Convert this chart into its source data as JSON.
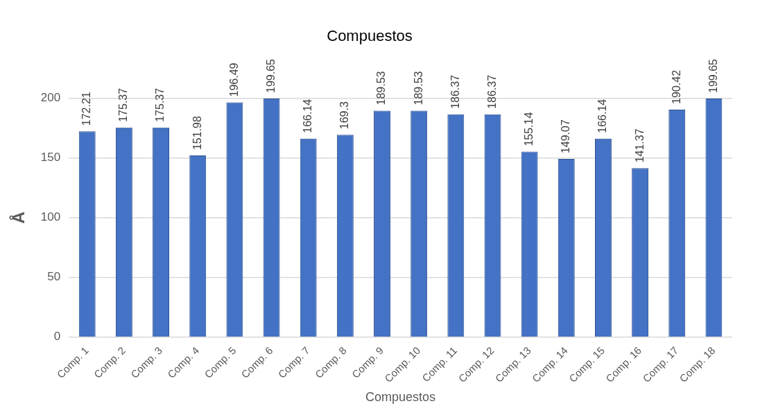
{
  "chart_data": {
    "type": "bar",
    "title": "Compuestos",
    "xlabel": "Compuestos",
    "ylabel": "Å",
    "categories": [
      "Comp. 1",
      "Comp. 2",
      "Comp. 3",
      "Comp. 4",
      "Comp. 5",
      "Comp. 6",
      "Comp. 7",
      "Comp. 8",
      "Comp. 9",
      "Comp. 10",
      "Comp. 11",
      "Comp. 12",
      "Comp. 13",
      "Comp. 14",
      "Comp. 15",
      "Comp. 16",
      "Comp. 17",
      "Comp. 18"
    ],
    "values": [
      172.21,
      175.37,
      175.37,
      151.98,
      196.49,
      199.65,
      166.14,
      169.3,
      189.53,
      189.53,
      186.37,
      186.37,
      155.14,
      149.07,
      166.14,
      141.37,
      190.42,
      199.65
    ],
    "color": "#4472c4",
    "ylim": [
      0,
      200
    ],
    "yticks": [
      0,
      50,
      100,
      150,
      200
    ],
    "grid": "y",
    "data_labels": true
  }
}
